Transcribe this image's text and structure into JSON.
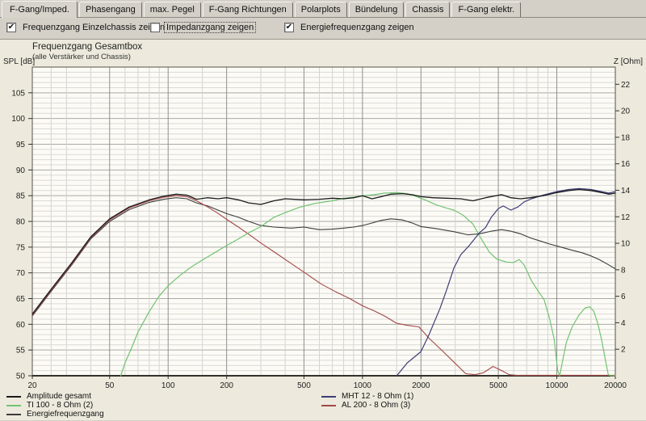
{
  "tabs": {
    "items": [
      {
        "label": "F-Gang/Imped.",
        "active": true
      },
      {
        "label": "Phasengang",
        "active": false
      },
      {
        "label": "max. Pegel",
        "active": false
      },
      {
        "label": "F-Gang Richtungen",
        "active": false
      },
      {
        "label": "Polarplots",
        "active": false
      },
      {
        "label": "Bündelung",
        "active": false
      },
      {
        "label": "Chassis",
        "active": false
      },
      {
        "label": "F-Gang elektr.",
        "active": false
      }
    ]
  },
  "controls": {
    "checkboxes": [
      {
        "label": "Frequenzgang Einzelchassis zeigen",
        "checked": true,
        "focused": false
      },
      {
        "label": "Impedanzgang zeigen",
        "checked": false,
        "focused": true
      },
      {
        "label": "Energiefrequenzgang zeigen",
        "checked": true,
        "focused": false
      }
    ]
  },
  "chart": {
    "title": "Frequenzgang Gesamtbox",
    "subtitle": "(alle Verstärker und Chassis)",
    "y_left_label": "SPL [dB]",
    "y_right_label": "Z [Ohm]"
  },
  "colors": {
    "amplitude": "#1a1a1a",
    "energie": "#3c3c3c",
    "ti100": "#72c372",
    "mht12": "#3d3d78",
    "al200": "#a34848"
  },
  "legend": {
    "columns": [
      {
        "items": [
          {
            "label": "Amplitude gesamt",
            "series": "amplitude"
          },
          {
            "label": "TI 100 - 8 Ohm (2)",
            "series": "ti100"
          },
          {
            "label": "Energiefrequenzgang",
            "series": "energie"
          }
        ]
      },
      {
        "items": [
          {
            "label": "MHT 12 - 8 Ohm (1)",
            "series": "mht12"
          },
          {
            "label": "AL 200 - 8 Ohm (3)",
            "series": "al200"
          }
        ]
      }
    ]
  },
  "chart_data": {
    "type": "line",
    "x_scale": "log",
    "x_range": [
      20,
      20000
    ],
    "y_left_range": [
      50,
      110
    ],
    "y_right_range": [
      0,
      23.3
    ],
    "x_major_ticks": [
      20,
      50,
      100,
      200,
      500,
      1000,
      2000,
      5000,
      10000,
      20000
    ],
    "x_minor_ticks": [
      25,
      30,
      40,
      60,
      70,
      80,
      90,
      150,
      300,
      400,
      600,
      700,
      800,
      900,
      1500,
      3000,
      4000,
      6000,
      7000,
      8000,
      9000,
      15000
    ],
    "y_left_labeled_ticks": [
      105,
      100,
      95,
      90,
      85,
      80,
      75,
      70,
      65,
      60,
      55,
      50
    ],
    "y_left_minor_step": 1,
    "y_left_major_step": 5,
    "y_right_labeled_ticks": [
      22,
      20,
      18,
      16,
      14,
      12,
      10,
      8,
      6,
      4,
      2
    ],
    "series": [
      {
        "name": "Energiefrequenzgang",
        "color_key": "energie",
        "width": 1.1,
        "points": [
          [
            20,
            61.6
          ],
          [
            25,
            66.4
          ],
          [
            32,
            71.6
          ],
          [
            40,
            76.6
          ],
          [
            50,
            80.0
          ],
          [
            63,
            82.3
          ],
          [
            80,
            83.7
          ],
          [
            95,
            84.3
          ],
          [
            110,
            84.6
          ],
          [
            125,
            84.4
          ],
          [
            140,
            83.6
          ],
          [
            160,
            83.0
          ],
          [
            200,
            81.5
          ],
          [
            230,
            80.8
          ],
          [
            260,
            80.0
          ],
          [
            300,
            79.2
          ],
          [
            350,
            78.9
          ],
          [
            430,
            78.7
          ],
          [
            500,
            78.9
          ],
          [
            600,
            78.4
          ],
          [
            700,
            78.5
          ],
          [
            800,
            78.7
          ],
          [
            900,
            78.9
          ],
          [
            1000,
            79.2
          ],
          [
            1100,
            79.6
          ],
          [
            1250,
            80.2
          ],
          [
            1400,
            80.5
          ],
          [
            1600,
            80.3
          ],
          [
            1800,
            79.7
          ],
          [
            2000,
            79.0
          ],
          [
            2400,
            78.6
          ],
          [
            2950,
            78.0
          ],
          [
            3500,
            77.4
          ],
          [
            4000,
            77.6
          ],
          [
            4600,
            78.1
          ],
          [
            5200,
            78.4
          ],
          [
            5800,
            78.1
          ],
          [
            6500,
            77.6
          ],
          [
            7300,
            76.8
          ],
          [
            8200,
            76.2
          ],
          [
            9200,
            75.6
          ],
          [
            10500,
            75.0
          ],
          [
            12000,
            74.4
          ],
          [
            13500,
            73.9
          ],
          [
            15000,
            73.3
          ],
          [
            16500,
            72.6
          ],
          [
            18000,
            71.8
          ],
          [
            20000,
            70.8
          ]
        ]
      },
      {
        "name": "AL 200 - 8 Ohm (3)",
        "color_key": "al200",
        "width": 1.1,
        "points": [
          [
            20,
            61.8
          ],
          [
            25,
            66.6
          ],
          [
            32,
            71.8
          ],
          [
            40,
            76.8
          ],
          [
            50,
            80.3
          ],
          [
            63,
            82.6
          ],
          [
            80,
            84.0
          ],
          [
            95,
            84.7
          ],
          [
            110,
            85.0
          ],
          [
            125,
            84.8
          ],
          [
            140,
            84.0
          ],
          [
            160,
            82.8
          ],
          [
            180,
            81.6
          ],
          [
            200,
            80.4
          ],
          [
            230,
            78.9
          ],
          [
            260,
            77.5
          ],
          [
            300,
            75.8
          ],
          [
            360,
            73.8
          ],
          [
            430,
            71.8
          ],
          [
            520,
            69.7
          ],
          [
            615,
            67.8
          ],
          [
            730,
            66.3
          ],
          [
            850,
            65.1
          ],
          [
            1000,
            63.6
          ],
          [
            1150,
            62.6
          ],
          [
            1300,
            61.6
          ],
          [
            1500,
            60.2
          ],
          [
            1700,
            59.8
          ],
          [
            1950,
            59.5
          ],
          [
            2200,
            57.3
          ],
          [
            2600,
            54.7
          ],
          [
            3000,
            52.4
          ],
          [
            3400,
            50.4
          ],
          [
            3800,
            50.2
          ],
          [
            4200,
            50.6
          ],
          [
            4700,
            51.8
          ],
          [
            5200,
            51.0
          ],
          [
            5700,
            50.2
          ],
          [
            6200,
            50.1
          ],
          [
            8000,
            50.1
          ],
          [
            10000,
            50.1
          ],
          [
            15000,
            50.1
          ],
          [
            20000,
            50.1
          ]
        ]
      },
      {
        "name": "TI 100 - 8 Ohm (2)",
        "color_key": "ti100",
        "width": 1.2,
        "points": [
          [
            57,
            50
          ],
          [
            60,
            52.5
          ],
          [
            65,
            55.5
          ],
          [
            70,
            58.5
          ],
          [
            80,
            62.5
          ],
          [
            90,
            65.5
          ],
          [
            100,
            67.5
          ],
          [
            115,
            69.5
          ],
          [
            130,
            71.0
          ],
          [
            150,
            72.5
          ],
          [
            175,
            74.0
          ],
          [
            200,
            75.3
          ],
          [
            230,
            76.6
          ],
          [
            260,
            77.8
          ],
          [
            300,
            79.0
          ],
          [
            350,
            80.8
          ],
          [
            400,
            81.7
          ],
          [
            470,
            82.7
          ],
          [
            570,
            83.5
          ],
          [
            700,
            84.0
          ],
          [
            800,
            84.5
          ],
          [
            900,
            84.7
          ],
          [
            1000,
            85.0
          ],
          [
            1150,
            85.2
          ],
          [
            1300,
            85.5
          ],
          [
            1500,
            85.6
          ],
          [
            1700,
            85.4
          ],
          [
            1900,
            84.8
          ],
          [
            2100,
            84.2
          ],
          [
            2400,
            83.2
          ],
          [
            2700,
            82.6
          ],
          [
            2950,
            82.2
          ],
          [
            3300,
            81.2
          ],
          [
            3700,
            79.5
          ],
          [
            4100,
            76.5
          ],
          [
            4500,
            74.0
          ],
          [
            4900,
            72.7
          ],
          [
            5500,
            72.1
          ],
          [
            6000,
            72.0
          ],
          [
            6400,
            72.6
          ],
          [
            6800,
            71.5
          ],
          [
            7400,
            68.5
          ],
          [
            8000,
            66.5
          ],
          [
            8600,
            64.8
          ],
          [
            9200,
            61.0
          ],
          [
            9700,
            57.0
          ],
          [
            10100,
            51.0
          ],
          [
            10350,
            50.0
          ],
          [
            10600,
            52.0
          ],
          [
            11200,
            56.5
          ],
          [
            12000,
            59.5
          ],
          [
            13000,
            61.8
          ],
          [
            14000,
            63.2
          ],
          [
            14800,
            63.4
          ],
          [
            15500,
            62.5
          ],
          [
            16300,
            60.0
          ],
          [
            17000,
            57.0
          ],
          [
            17800,
            53.0
          ],
          [
            18400,
            50.2
          ],
          [
            19000,
            50.0
          ],
          [
            20000,
            50.0
          ]
        ]
      },
      {
        "name": "MHT 12 - 8 Ohm (1)",
        "color_key": "mht12",
        "width": 1.2,
        "points": [
          [
            1500,
            50
          ],
          [
            1700,
            52.5
          ],
          [
            2000,
            54.7
          ],
          [
            2200,
            58.0
          ],
          [
            2500,
            63.0
          ],
          [
            2700,
            66.5
          ],
          [
            2950,
            70.9
          ],
          [
            3200,
            73.5
          ],
          [
            3560,
            75.4
          ],
          [
            4000,
            77.8
          ],
          [
            4300,
            78.8
          ],
          [
            4600,
            80.8
          ],
          [
            5000,
            82.5
          ],
          [
            5300,
            83.0
          ],
          [
            5800,
            82.2
          ],
          [
            6300,
            82.8
          ],
          [
            6800,
            83.8
          ],
          [
            7400,
            84.4
          ],
          [
            8000,
            84.8
          ],
          [
            8500,
            85.1
          ],
          [
            10000,
            85.8
          ],
          [
            11500,
            86.2
          ],
          [
            13000,
            86.4
          ],
          [
            15000,
            86.2
          ],
          [
            17000,
            85.8
          ],
          [
            18500,
            85.5
          ],
          [
            20000,
            85.8
          ]
        ]
      },
      {
        "name": "Amplitude gesamt",
        "color_key": "amplitude",
        "width": 1.3,
        "points": [
          [
            20,
            62.0
          ],
          [
            25,
            66.8
          ],
          [
            32,
            72.0
          ],
          [
            40,
            77.0
          ],
          [
            50,
            80.5
          ],
          [
            63,
            82.8
          ],
          [
            80,
            84.2
          ],
          [
            95,
            84.9
          ],
          [
            110,
            85.3
          ],
          [
            125,
            85.1
          ],
          [
            140,
            84.3
          ],
          [
            160,
            84.6
          ],
          [
            180,
            84.4
          ],
          [
            200,
            84.6
          ],
          [
            230,
            84.2
          ],
          [
            260,
            83.6
          ],
          [
            300,
            83.3
          ],
          [
            350,
            84.0
          ],
          [
            400,
            84.4
          ],
          [
            500,
            84.2
          ],
          [
            600,
            84.3
          ],
          [
            700,
            84.5
          ],
          [
            800,
            84.4
          ],
          [
            900,
            84.6
          ],
          [
            1000,
            85.0
          ],
          [
            1120,
            84.4
          ],
          [
            1250,
            84.8
          ],
          [
            1400,
            85.3
          ],
          [
            1600,
            85.4
          ],
          [
            1800,
            85.2
          ],
          [
            2000,
            84.8
          ],
          [
            2300,
            84.6
          ],
          [
            2700,
            84.5
          ],
          [
            3200,
            84.4
          ],
          [
            3700,
            84.0
          ],
          [
            4300,
            84.6
          ],
          [
            5200,
            85.2
          ],
          [
            5800,
            84.6
          ],
          [
            6500,
            84.4
          ],
          [
            7300,
            84.6
          ],
          [
            8500,
            85.0
          ],
          [
            10000,
            85.6
          ],
          [
            11500,
            86.0
          ],
          [
            13000,
            86.2
          ],
          [
            15000,
            86.0
          ],
          [
            17000,
            85.6
          ],
          [
            18500,
            85.3
          ],
          [
            20000,
            85.5
          ]
        ]
      }
    ]
  }
}
